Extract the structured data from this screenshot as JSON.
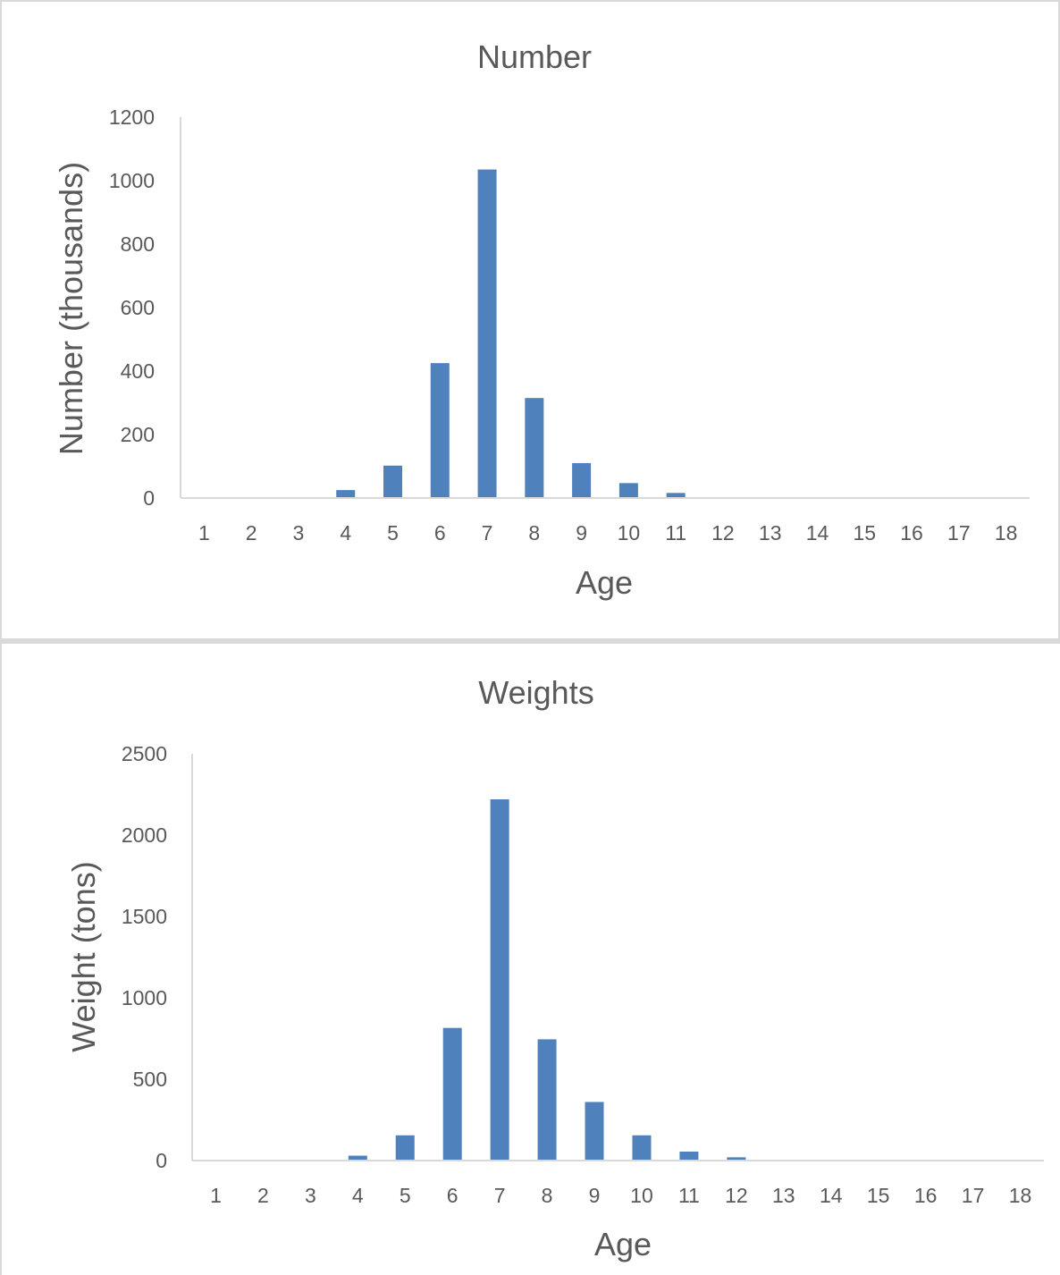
{
  "chart_data": [
    {
      "type": "bar",
      "title": "Number",
      "xlabel": "Age",
      "ylabel": "Number (thousands)",
      "categories": [
        "1",
        "2",
        "3",
        "4",
        "5",
        "6",
        "7",
        "8",
        "9",
        "10",
        "11",
        "12",
        "13",
        "14",
        "15",
        "16",
        "17",
        "18"
      ],
      "values": [
        0,
        0,
        0,
        25,
        102,
        425,
        1035,
        315,
        110,
        47,
        16,
        0,
        0,
        0,
        0,
        0,
        0,
        0
      ],
      "ylim": [
        0,
        1200
      ],
      "yticks": [
        "0",
        "200",
        "400",
        "600",
        "800",
        "1000",
        "1200"
      ],
      "grid": false,
      "bar_color": "#4f81bd"
    },
    {
      "type": "bar",
      "title": "Weights",
      "xlabel": "Age",
      "ylabel": "Weight (tons)",
      "categories": [
        "1",
        "2",
        "3",
        "4",
        "5",
        "6",
        "7",
        "8",
        "9",
        "10",
        "11",
        "12",
        "13",
        "14",
        "15",
        "16",
        "17",
        "18"
      ],
      "values": [
        0,
        0,
        0,
        30,
        155,
        815,
        2220,
        745,
        360,
        155,
        55,
        20,
        0,
        0,
        0,
        0,
        0,
        0
      ],
      "ylim": [
        0,
        2500
      ],
      "yticks": [
        "0",
        "500",
        "1000",
        "1500",
        "2000",
        "2500"
      ],
      "grid": false,
      "bar_color": "#4f81bd"
    }
  ]
}
